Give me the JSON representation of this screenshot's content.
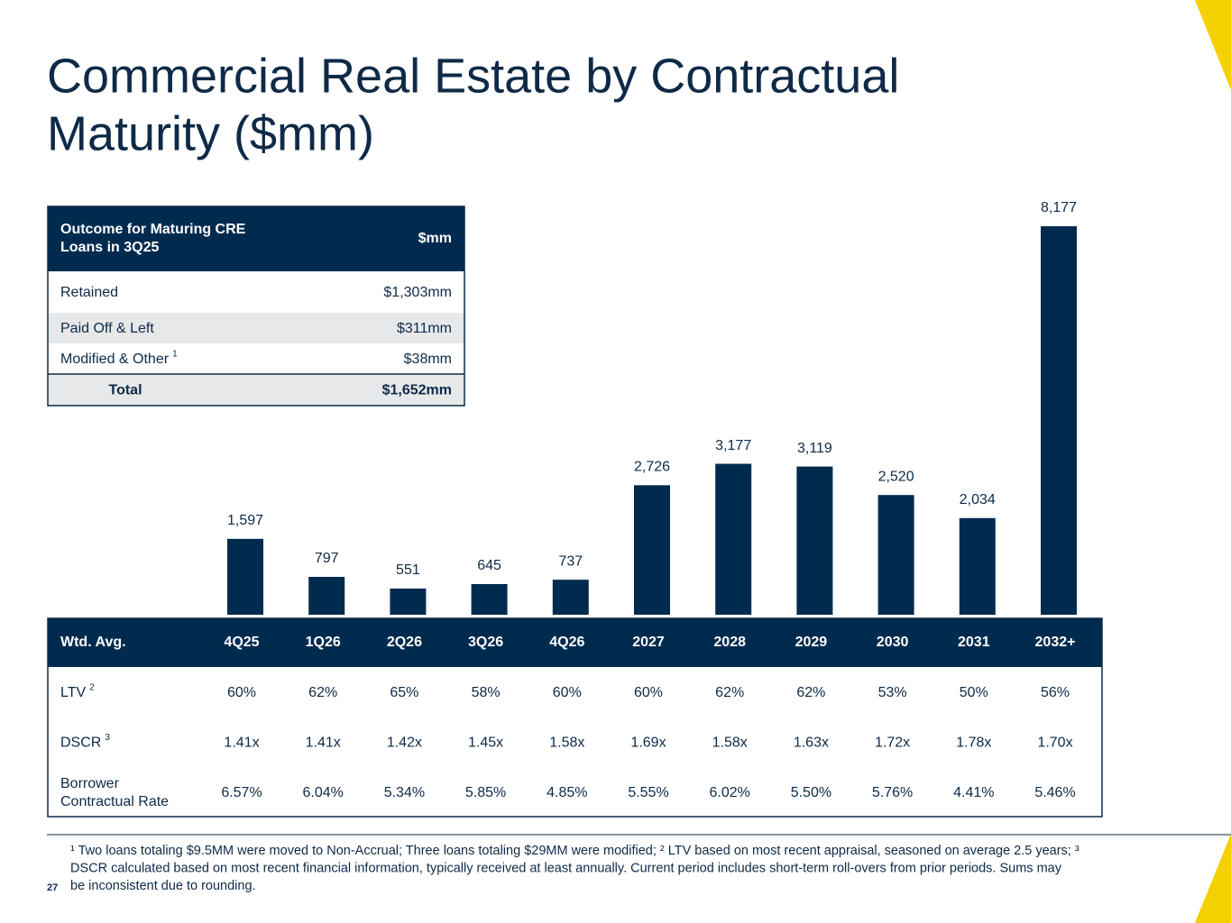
{
  "header": {
    "title": [
      "Commercial Real Estate by Contractual",
      "Maturity ($mm)"
    ]
  },
  "outcome_table": {
    "header": [
      [
        "Outcome for Maturing CRE",
        "Loans in 3Q25"
      ],
      "$mm"
    ],
    "rows": [
      [
        "Retained",
        "$1,303mm"
      ],
      [
        "Paid Off & Left",
        "$311mm"
      ],
      [
        {
          "text": "Modified & Other",
          "note": "1"
        },
        "$38mm"
      ],
      [
        "Total",
        "$1,652mm"
      ]
    ]
  },
  "chart_data": {
    "type": "bar",
    "color": "#002b4f",
    "categories": [
      "4Q25",
      "1Q26",
      "2Q26",
      "3Q26",
      "4Q26",
      "2027",
      "2028",
      "2029",
      "2030",
      "2031",
      "2032+"
    ],
    "values": [
      1597,
      797,
      551,
      645,
      737,
      2726,
      3177,
      3119,
      2520,
      2034,
      8177
    ],
    "value_labels": [
      "1,597",
      "797",
      "551",
      "645",
      "737",
      "2,726",
      "3,177",
      "3,119",
      "2,520",
      "2,034",
      "8,177"
    ]
  },
  "metrics_table": {
    "corner": "Wtd. Avg.",
    "rows": [
      {
        "label": [
          "LTV"
        ],
        "note": "2",
        "values": [
          "60%",
          "62%",
          "65%",
          "58%",
          "60%",
          "60%",
          "62%",
          "62%",
          "53%",
          "50%",
          "56%"
        ]
      },
      {
        "label": [
          "DSCR"
        ],
        "note": "3",
        "values": [
          "1.41x",
          "1.41x",
          "1.42x",
          "1.45x",
          "1.58x",
          "1.69x",
          "1.58x",
          "1.63x",
          "1.72x",
          "1.78x",
          "1.70x"
        ]
      },
      {
        "label": [
          "Borrower",
          "Contractual Rate"
        ],
        "values": [
          "6.57%",
          "6.04%",
          "5.34%",
          "5.85%",
          "4.85%",
          "5.55%",
          "6.02%",
          "5.50%",
          "5.76%",
          "4.41%",
          "5.46%"
        ]
      }
    ]
  },
  "footnote": {
    "lines": [
      "¹ Two loans totaling $9.5MM were moved to Non-Accrual; Three loans totaling $29MM were modified; ² LTV based on most recent appraisal, seasoned on average 2.5 years;  ³",
      "DSCR calculated based on most recent financial information, typically received at least annually. Current period includes short-term roll-overs from prior periods. Sums may",
      "be inconsistent due to rounding."
    ],
    "page_number": "27"
  }
}
